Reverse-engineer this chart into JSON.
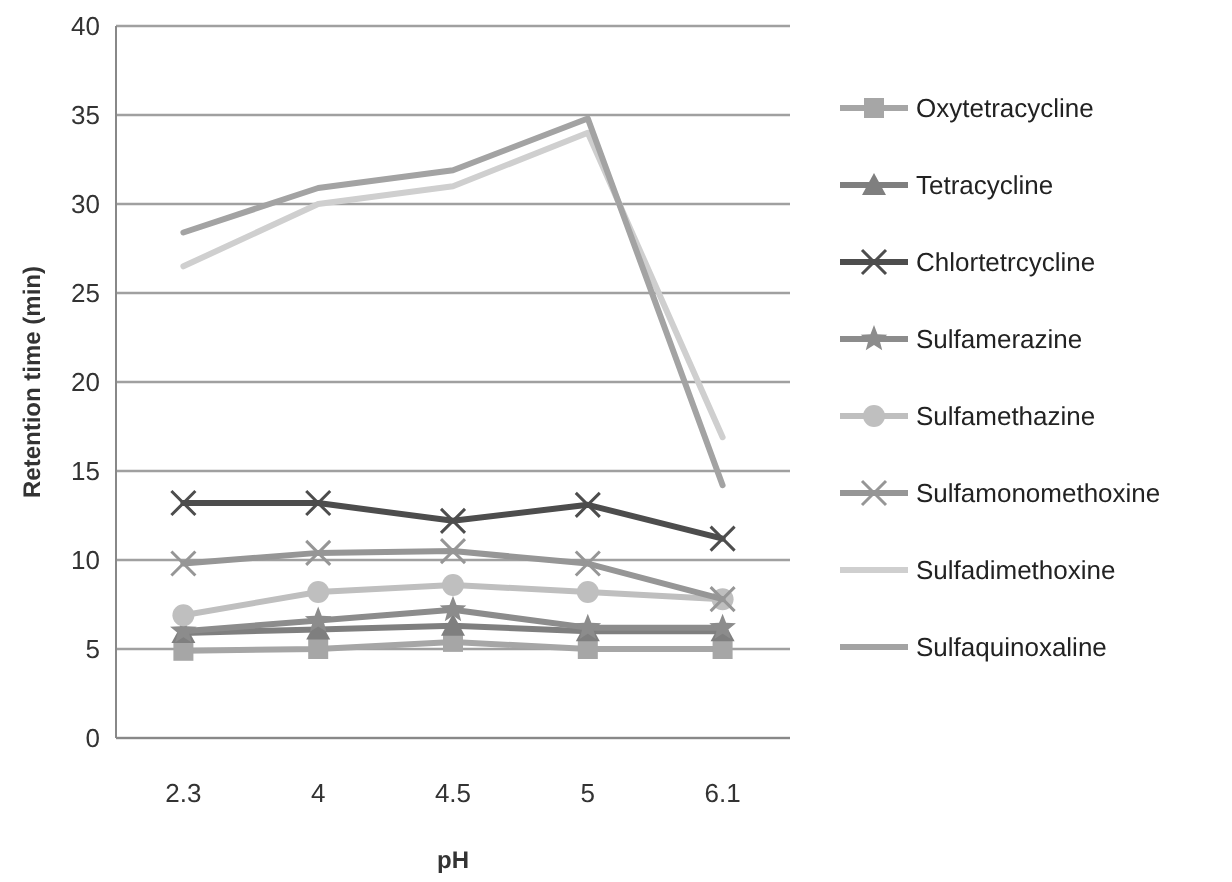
{
  "chart_data": {
    "type": "line",
    "xlabel": "pH",
    "ylabel": "Retention time (min)",
    "categories": [
      "2.3",
      "4",
      "4.5",
      "5",
      "6.1"
    ],
    "ylim": [
      0,
      40
    ],
    "yticks": [
      0,
      5,
      10,
      15,
      20,
      25,
      30,
      35,
      40
    ],
    "grid": "y",
    "legend": "right",
    "series": [
      {
        "name": "Oxytetracycline",
        "color": "#a6a6a6",
        "marker": "square",
        "values": [
          4.9,
          5.0,
          5.4,
          5.0,
          5.0
        ]
      },
      {
        "name": "Tetracycline",
        "color": "#7f7f7f",
        "marker": "triangle",
        "values": [
          5.9,
          6.1,
          6.3,
          6.0,
          6.0
        ]
      },
      {
        "name": "Chlortetrcycline",
        "color": "#4d4d4d",
        "marker": "cross",
        "values": [
          13.2,
          13.2,
          12.2,
          13.1,
          11.2
        ]
      },
      {
        "name": "Sulfamerazine",
        "color": "#8c8c8c",
        "marker": "star",
        "values": [
          6.0,
          6.6,
          7.2,
          6.2,
          6.2
        ]
      },
      {
        "name": "Sulfamethazine",
        "color": "#bfbfbf",
        "marker": "circle",
        "values": [
          6.9,
          8.2,
          8.6,
          8.2,
          7.8
        ]
      },
      {
        "name": "Sulfamonomethoxine",
        "color": "#969696",
        "marker": "cross",
        "values": [
          9.8,
          10.4,
          10.5,
          9.8,
          7.8
        ]
      },
      {
        "name": "Sulfadimethoxine",
        "color": "#cfcfcf",
        "marker": "none",
        "values": [
          26.5,
          30.0,
          31.0,
          34.0,
          16.9
        ]
      },
      {
        "name": "Sulfaquinoxaline",
        "color": "#a3a3a3",
        "marker": "none",
        "values": [
          28.4,
          30.9,
          31.9,
          34.8,
          14.2
        ]
      }
    ]
  }
}
